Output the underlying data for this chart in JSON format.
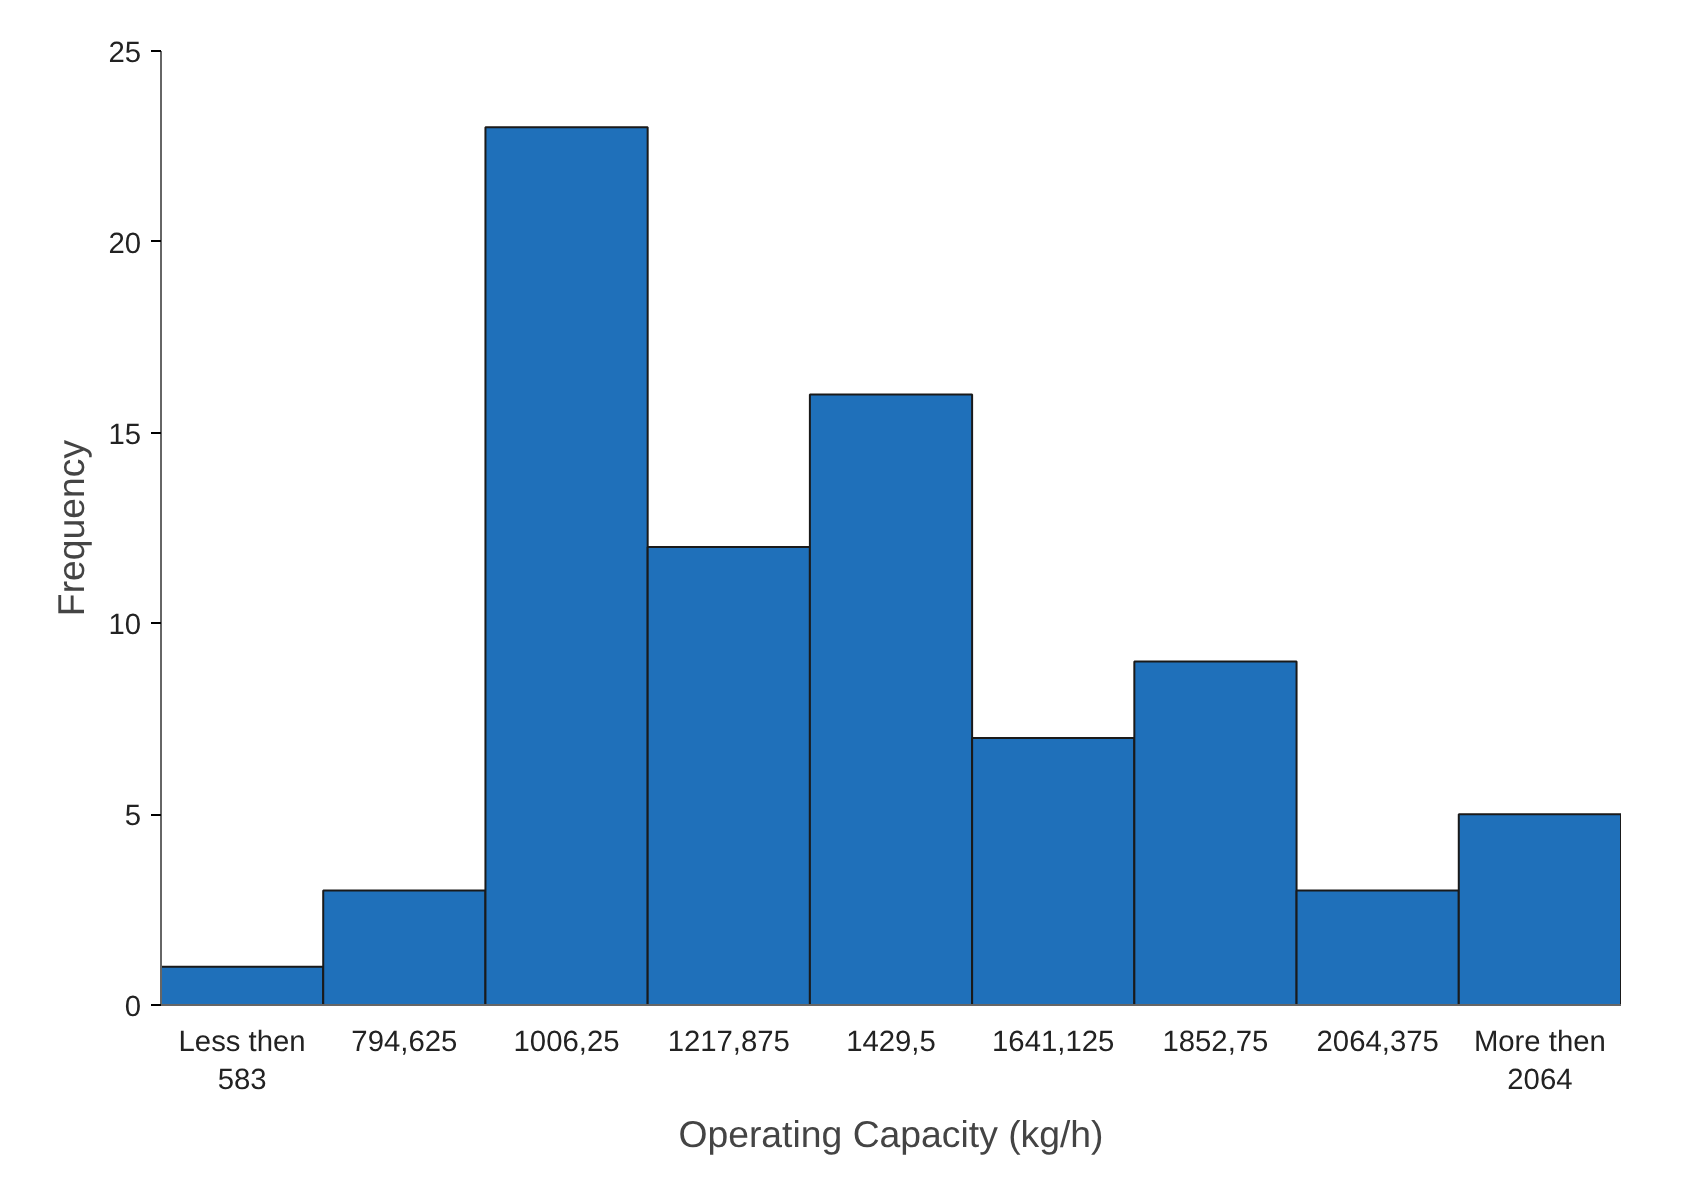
{
  "chart_data": {
    "type": "bar",
    "xlabel": "Operating Capacity (kg/h)",
    "ylabel": "Frequency",
    "categories": [
      "Less then 583",
      "794,625",
      "1006,25",
      "1217,875",
      "1429,5",
      "1641,125",
      "1852,75",
      "2064,375",
      "More then 2064"
    ],
    "values": [
      1,
      3,
      23,
      12,
      16,
      7,
      9,
      3,
      5
    ],
    "color": "#1f70ba",
    "ylim": [
      0,
      25
    ],
    "yticks": [
      0,
      5,
      10,
      15,
      20,
      25
    ],
    "grid": false
  }
}
